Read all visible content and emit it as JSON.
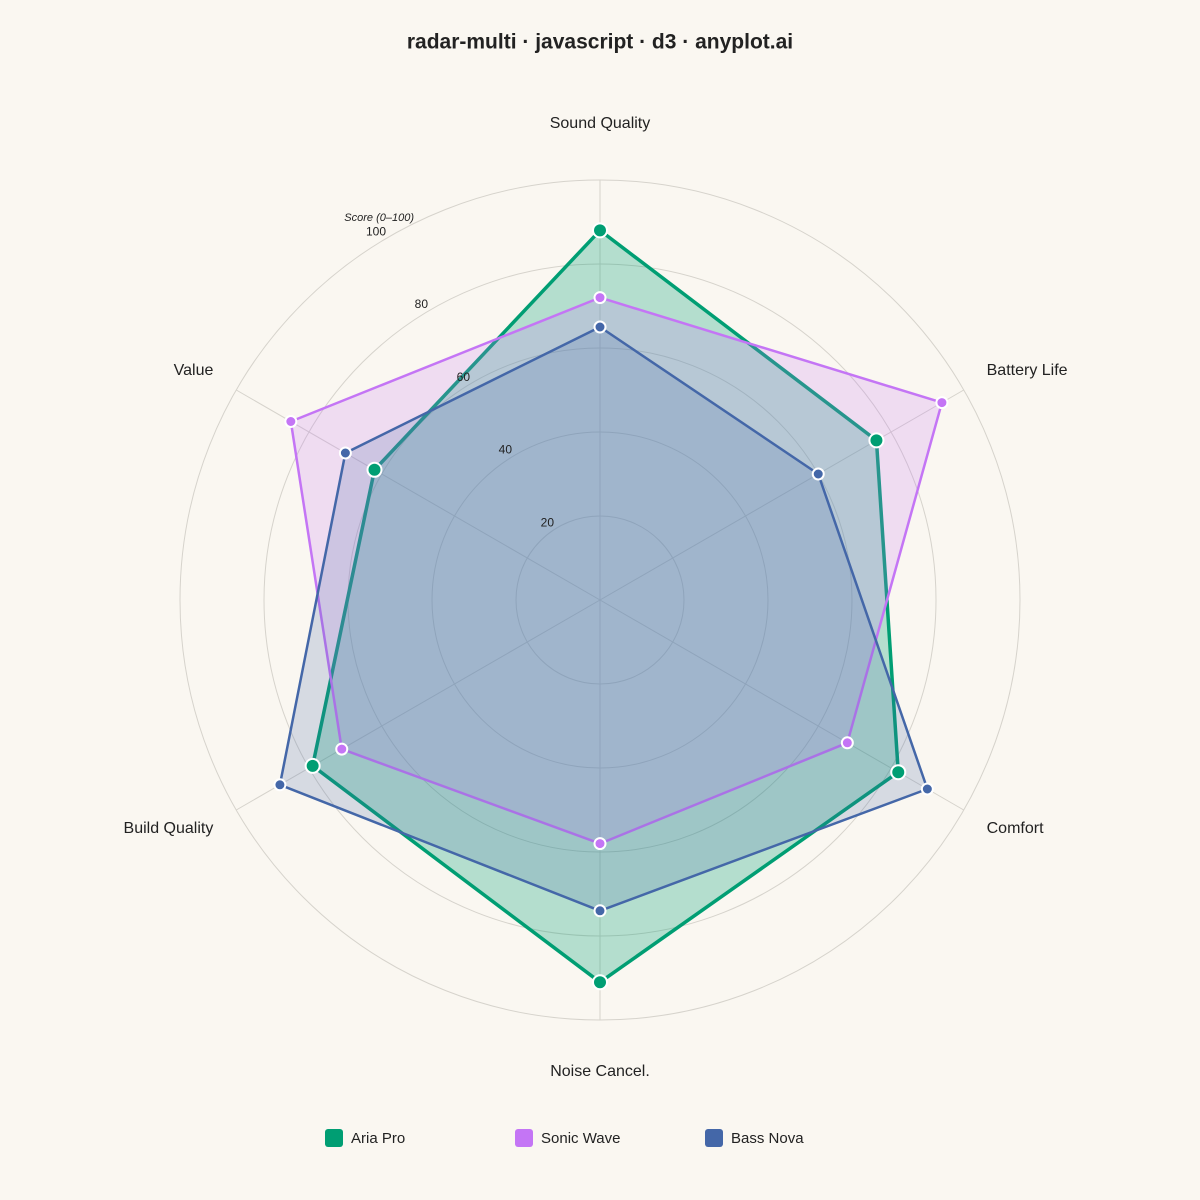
{
  "chart_data": {
    "type": "radar",
    "title": "radar-multi · javascript · d3 · anyplot.ai",
    "r_axis_label": "Score (0–100)",
    "categories": [
      "Sound Quality",
      "Battery Life",
      "Comfort",
      "Noise Cancel.",
      "Build Quality",
      "Value"
    ],
    "series": [
      {
        "name": "Aria Pro",
        "color": "#009e73",
        "values": [
          88,
          76,
          82,
          91,
          79,
          62
        ]
      },
      {
        "name": "Sonic Wave",
        "color": "#c475f5",
        "values": [
          72,
          94,
          68,
          58,
          71,
          85
        ]
      },
      {
        "name": "Bass Nova",
        "color": "#4467a8",
        "values": [
          65,
          60,
          90,
          74,
          88,
          70
        ]
      }
    ],
    "rlim": [
      0,
      100
    ],
    "rticks": [
      20,
      40,
      60,
      80,
      100
    ],
    "grid": true
  }
}
